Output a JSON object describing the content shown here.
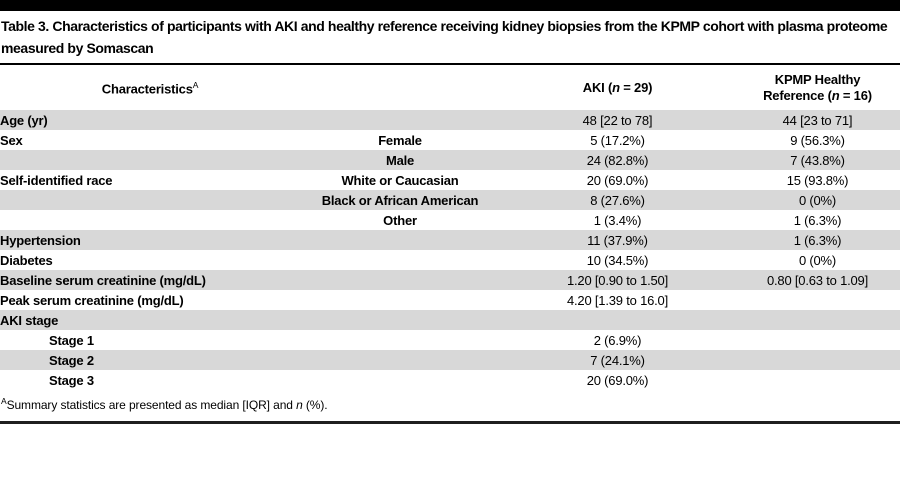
{
  "title": "Table 3. Characteristics of participants with AKI and healthy reference receiving kidney biopsies from the KPMP cohort with plasma proteome measured by Somascan",
  "table": {
    "header": {
      "characteristics_html": "Characteristics<sup>A</sup>",
      "sub_html": "",
      "aki_html": "AKI (<i>n</i> = 29)",
      "kpmp_html": "KPMP Healthy<br>Reference (<i>n</i> = 16)"
    },
    "rows": [
      {
        "label": "Age (yr)",
        "sub": "",
        "aki": "48 [22 to 78]",
        "ref": "44 [23 to 71]"
      },
      {
        "label": "Sex",
        "sub": "Female",
        "aki": "5 (17.2%)",
        "ref": "9 (56.3%)"
      },
      {
        "label": "",
        "sub": "Male",
        "aki": "24 (82.8%)",
        "ref": "7 (43.8%)"
      },
      {
        "label": "Self-identified race",
        "sub": "White or Caucasian",
        "aki": "20 (69.0%)",
        "ref": "15 (93.8%)"
      },
      {
        "label": "",
        "sub": "Black or African American",
        "aki": "8 (27.6%)",
        "ref": "0 (0%)"
      },
      {
        "label": "",
        "sub": "Other",
        "aki": "1 (3.4%)",
        "ref": "1 (6.3%)"
      },
      {
        "label": "Hypertension",
        "sub": "",
        "aki": "11 (37.9%)",
        "ref": "1 (6.3%)"
      },
      {
        "label": "Diabetes",
        "sub": "",
        "aki": "10 (34.5%)",
        "ref": "0 (0%)"
      },
      {
        "label": "Baseline serum creatinine (mg/dL)",
        "sub": "",
        "aki": "1.20 [0.90 to 1.50]",
        "ref": "0.80 [0.63 to 1.09]"
      },
      {
        "label": "Peak serum creatinine (mg/dL)",
        "sub": "",
        "aki": "4.20 [1.39 to 16.0]",
        "ref": ""
      },
      {
        "label": "AKI stage",
        "sub": "",
        "aki": "",
        "ref": ""
      },
      {
        "label": "Stage 1",
        "sub": "",
        "aki": "2 (6.9%)",
        "ref": "",
        "indent": true
      },
      {
        "label": "Stage 2",
        "sub": "",
        "aki": "7 (24.1%)",
        "ref": "",
        "indent": true
      },
      {
        "label": "Stage 3",
        "sub": "",
        "aki": "20 (69.0%)",
        "ref": "",
        "indent": true
      }
    ]
  },
  "footnote_html": "<sup>A</sup>Summary statistics are presented as median [IQR] and <i>n</i> (%).",
  "colors": {
    "row_shade": "#d8d8d8",
    "rule_top": "#000000",
    "rule_bottom": "#1f1f1f",
    "text": "#000000"
  }
}
